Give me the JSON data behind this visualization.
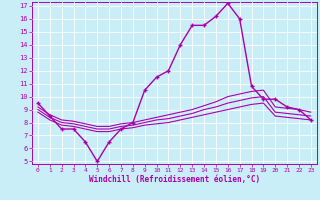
{
  "xlabel": "Windchill (Refroidissement éolien,°C)",
  "background_color": "#caeef8",
  "line_color": "#aa00aa",
  "grid_color": "#ffffff",
  "xlim": [
    -0.5,
    23.5
  ],
  "ylim": [
    4.8,
    17.3
  ],
  "yticks": [
    5,
    6,
    7,
    8,
    9,
    10,
    11,
    12,
    13,
    14,
    15,
    16,
    17
  ],
  "xticks": [
    0,
    1,
    2,
    3,
    4,
    5,
    6,
    7,
    8,
    9,
    10,
    11,
    12,
    13,
    14,
    15,
    16,
    17,
    18,
    19,
    20,
    21,
    22,
    23
  ],
  "series": [
    {
      "x": [
        0,
        1,
        2,
        3,
        4,
        5,
        6,
        7,
        8,
        9,
        10,
        11,
        12,
        13,
        14,
        15,
        16,
        17,
        18,
        19,
        20,
        21,
        22,
        23
      ],
      "y": [
        9.5,
        8.5,
        7.5,
        7.5,
        6.5,
        5.0,
        6.5,
        7.5,
        8.0,
        10.5,
        11.5,
        12.0,
        14.0,
        15.5,
        15.5,
        16.2,
        17.2,
        16.0,
        10.8,
        9.8,
        9.8,
        9.2,
        9.0,
        8.2
      ],
      "marker": "+",
      "linewidth": 1.0,
      "markersize": 3.5
    },
    {
      "x": [
        0,
        1,
        2,
        3,
        4,
        5,
        6,
        7,
        8,
        9,
        10,
        11,
        12,
        13,
        14,
        15,
        16,
        17,
        18,
        19,
        20,
        21,
        22,
        23
      ],
      "y": [
        8.8,
        8.2,
        7.8,
        7.7,
        7.5,
        7.3,
        7.3,
        7.5,
        7.6,
        7.8,
        7.9,
        8.0,
        8.2,
        8.4,
        8.6,
        8.8,
        9.0,
        9.2,
        9.4,
        9.5,
        8.5,
        8.4,
        8.3,
        8.2
      ],
      "marker": null,
      "linewidth": 0.8,
      "markersize": 0
    },
    {
      "x": [
        0,
        1,
        2,
        3,
        4,
        5,
        6,
        7,
        8,
        9,
        10,
        11,
        12,
        13,
        14,
        15,
        16,
        17,
        18,
        19,
        20,
        21,
        22,
        23
      ],
      "y": [
        9.0,
        8.4,
        8.0,
        7.9,
        7.7,
        7.5,
        7.5,
        7.7,
        7.8,
        8.0,
        8.2,
        8.3,
        8.5,
        8.7,
        9.0,
        9.2,
        9.5,
        9.7,
        9.9,
        10.0,
        8.8,
        8.7,
        8.6,
        8.5
      ],
      "marker": null,
      "linewidth": 0.8,
      "markersize": 0
    },
    {
      "x": [
        0,
        1,
        2,
        3,
        4,
        5,
        6,
        7,
        8,
        9,
        10,
        11,
        12,
        13,
        14,
        15,
        16,
        17,
        18,
        19,
        20,
        21,
        22,
        23
      ],
      "y": [
        9.2,
        8.6,
        8.2,
        8.1,
        7.9,
        7.7,
        7.7,
        7.9,
        8.0,
        8.2,
        8.4,
        8.6,
        8.8,
        9.0,
        9.3,
        9.6,
        10.0,
        10.2,
        10.4,
        10.5,
        9.2,
        9.1,
        9.0,
        8.8
      ],
      "marker": null,
      "linewidth": 0.8,
      "markersize": 0
    }
  ]
}
